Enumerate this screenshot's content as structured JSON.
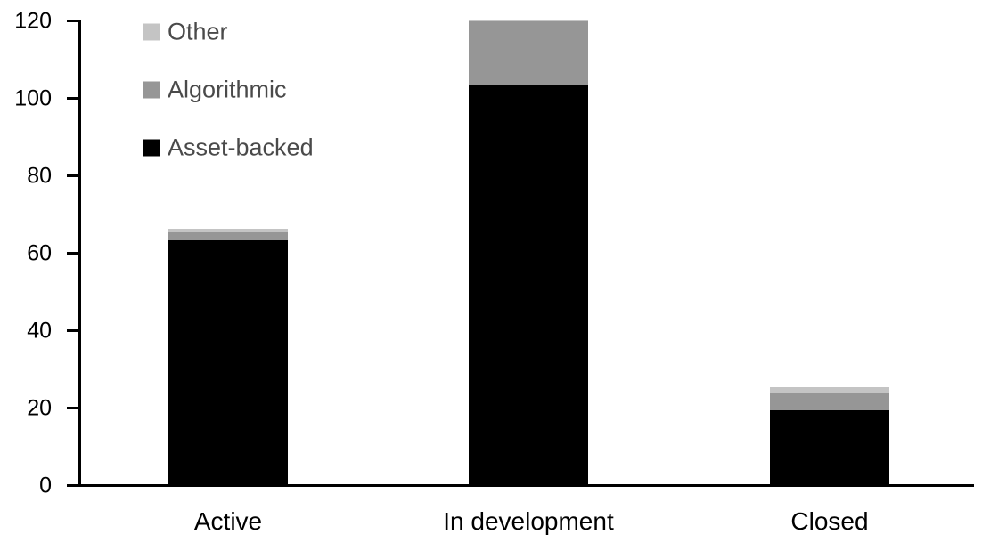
{
  "chart_data": {
    "type": "bar",
    "stacked": true,
    "title": "",
    "xlabel": "",
    "ylabel": "",
    "categories": [
      "Active",
      "In development",
      "Closed"
    ],
    "series": [
      {
        "name": "Asset-backed",
        "color": "#000000",
        "values": [
          63,
          103,
          19
        ]
      },
      {
        "name": "Algorithmic",
        "color": "#969696",
        "values": [
          2,
          16.5,
          4.5
        ]
      },
      {
        "name": "Other",
        "color": "#c4c4c4",
        "values": [
          1,
          0.5,
          1.5
        ]
      }
    ],
    "totals": [
      66,
      120,
      25
    ],
    "ylim": [
      0,
      120
    ],
    "yticks": [
      0,
      20,
      40,
      60,
      80,
      100,
      120
    ],
    "grid": false,
    "legend_position": "top-left",
    "legend_order": [
      "Other",
      "Algorithmic",
      "Asset-backed"
    ]
  },
  "colors": {
    "axis": "#000000",
    "legend_text": "#4a4a4a",
    "background": "#ffffff"
  }
}
